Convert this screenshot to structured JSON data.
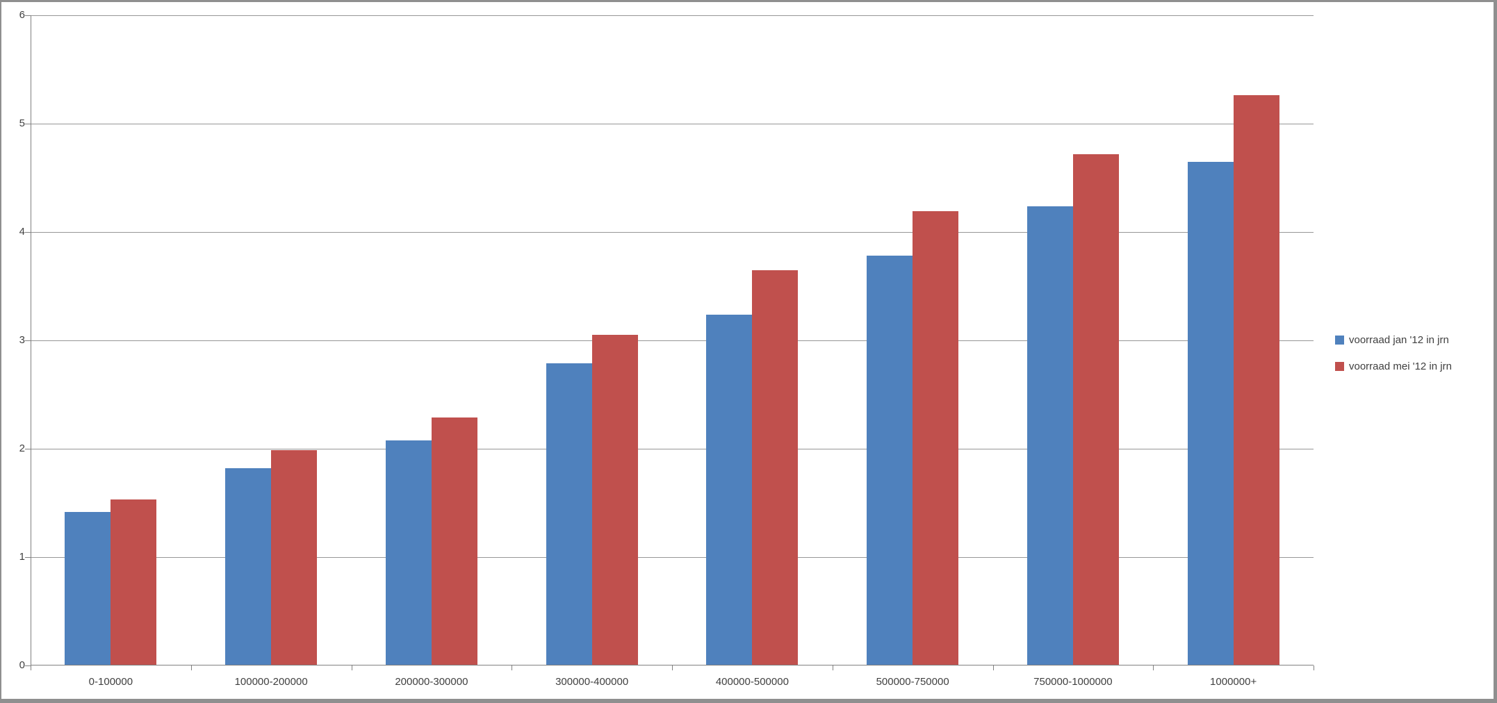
{
  "chart_data": {
    "type": "bar",
    "title": "",
    "categories": [
      "0-100000",
      "100000-200000",
      "200000-300000",
      "300000-400000",
      "400000-500000",
      "500000-750000",
      "750000-1000000",
      "1000000+"
    ],
    "series": [
      {
        "name": "voorraad jan '12 in jrn",
        "color": "#4F81BD",
        "values": [
          1.42,
          1.82,
          2.08,
          2.79,
          3.24,
          3.78,
          4.24,
          4.65
        ]
      },
      {
        "name": "voorraad mei '12 in jrn",
        "color": "#C0504D",
        "values": [
          1.53,
          1.99,
          2.29,
          3.05,
          3.65,
          4.19,
          4.72,
          5.26
        ]
      }
    ],
    "xlabel": "",
    "ylabel": "",
    "ylim": [
      0,
      6
    ],
    "yticks": [
      0,
      1,
      2,
      3,
      4,
      5,
      6
    ],
    "grid": true,
    "legend_position": "right"
  },
  "colors": {
    "series_blue": "#4F81BD",
    "series_red": "#C0504D",
    "gridline": "#969696",
    "axis": "#808080",
    "text": "#3F3F3F",
    "frame_border": "#8F8F8F",
    "background": "#FFFFFF"
  }
}
